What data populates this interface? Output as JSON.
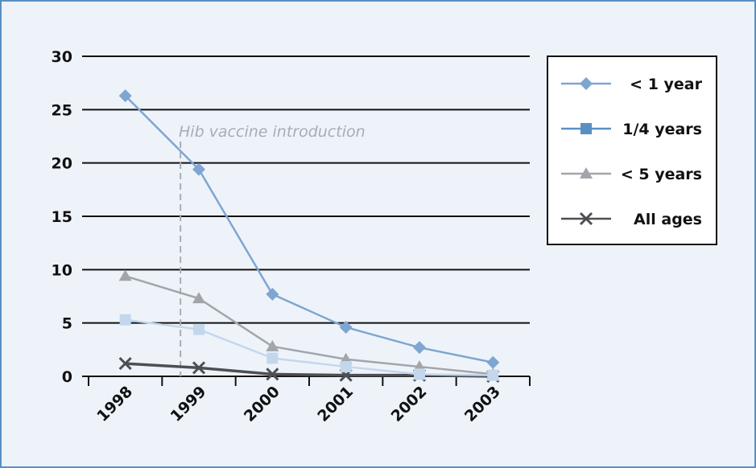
{
  "chart_data": {
    "type": "line",
    "title": "",
    "xlabel": "",
    "ylabel": "",
    "categories": [
      "1998",
      "1999",
      "2000",
      "2001",
      "2002",
      "2003"
    ],
    "ylim": [
      0,
      30
    ],
    "yticks": [
      0,
      5,
      10,
      15,
      20,
      25,
      30
    ],
    "grid": true,
    "legend_position": "top-right",
    "series": [
      {
        "name": "< 1 year",
        "values": [
          26.3,
          19.4,
          7.7,
          4.6,
          2.7,
          1.3
        ],
        "color": "#7ea6d1",
        "marker": "diamond",
        "marker_color": "#7ea6d1"
      },
      {
        "name": "1/4 years",
        "values": [
          5.3,
          4.4,
          1.7,
          0.9,
          0.2,
          0.1
        ],
        "color": "#c3d7ec",
        "marker": "square",
        "marker_color": "#c3d7ec",
        "legend_color": "#5b8fc4"
      },
      {
        "name": "< 5 years",
        "values": [
          9.4,
          7.3,
          2.8,
          1.6,
          0.9,
          0.2
        ],
        "color": "#a2a6ab",
        "marker": "triangle",
        "marker_color": "#a2a6ab"
      },
      {
        "name": "All ages",
        "values": [
          1.2,
          0.8,
          0.2,
          0.1,
          0.1,
          0.0
        ],
        "color": "#4e4f53",
        "marker": "x",
        "marker_color": "#4e4f53"
      }
    ],
    "annotation": {
      "text": "Hib vaccine introduction",
      "x": 1998.75,
      "style": "dashed-vertical-line",
      "color": "#a8adb3"
    },
    "colors": {
      "background": "#eef3fa",
      "border": "#5a8ec2",
      "gridline": "#111111"
    }
  }
}
